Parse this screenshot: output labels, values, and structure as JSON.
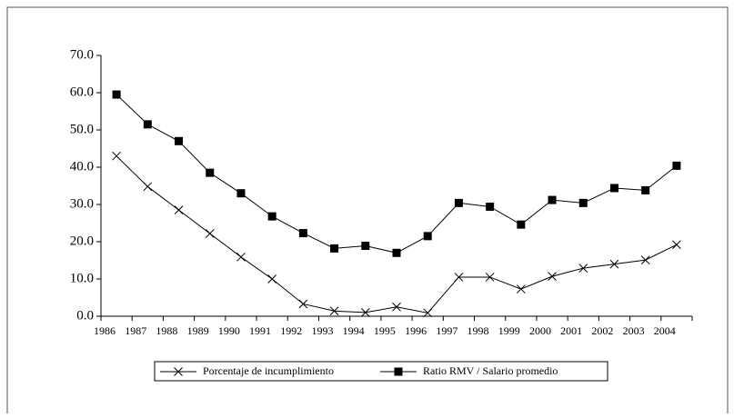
{
  "chart_data": {
    "type": "line",
    "categories": [
      "1986",
      "1987",
      "1988",
      "1989",
      "1990",
      "1991",
      "1992",
      "1993",
      "1994",
      "1995",
      "1996",
      "1997",
      "1998",
      "1999",
      "2000",
      "2001",
      "2002",
      "2003",
      "2004"
    ],
    "series": [
      {
        "name": "Porcentaje de incumplimiento",
        "color": "#000000",
        "marker": "x",
        "values": [
          43.0,
          34.8,
          28.5,
          22.2,
          15.9,
          10.0,
          3.3,
          1.4,
          1.0,
          2.5,
          0.9,
          10.5,
          10.5,
          7.3,
          10.7,
          12.9,
          14.0,
          15.1,
          19.2
        ]
      },
      {
        "name": "Ratio RMV / Salario promedio",
        "color": "#000000",
        "marker": "square",
        "values": [
          59.5,
          51.5,
          47.0,
          38.5,
          33.0,
          26.8,
          22.3,
          18.2,
          18.9,
          17.0,
          21.5,
          30.4,
          29.4,
          24.6,
          31.2,
          30.4,
          34.4,
          33.8,
          40.4
        ]
      }
    ],
    "ylim": [
      0,
      70
    ],
    "yticks": [
      {
        "value": 0,
        "label": "0.0"
      },
      {
        "value": 10,
        "label": "10.0"
      },
      {
        "value": 20,
        "label": "20.0"
      },
      {
        "value": 30,
        "label": "30.0"
      },
      {
        "value": 40,
        "label": "40.0"
      },
      {
        "value": 50,
        "label": "50.0"
      },
      {
        "value": 60,
        "label": "60.0"
      },
      {
        "value": 70,
        "label": "70.0"
      }
    ],
    "grid": false,
    "legend": "bottom"
  }
}
